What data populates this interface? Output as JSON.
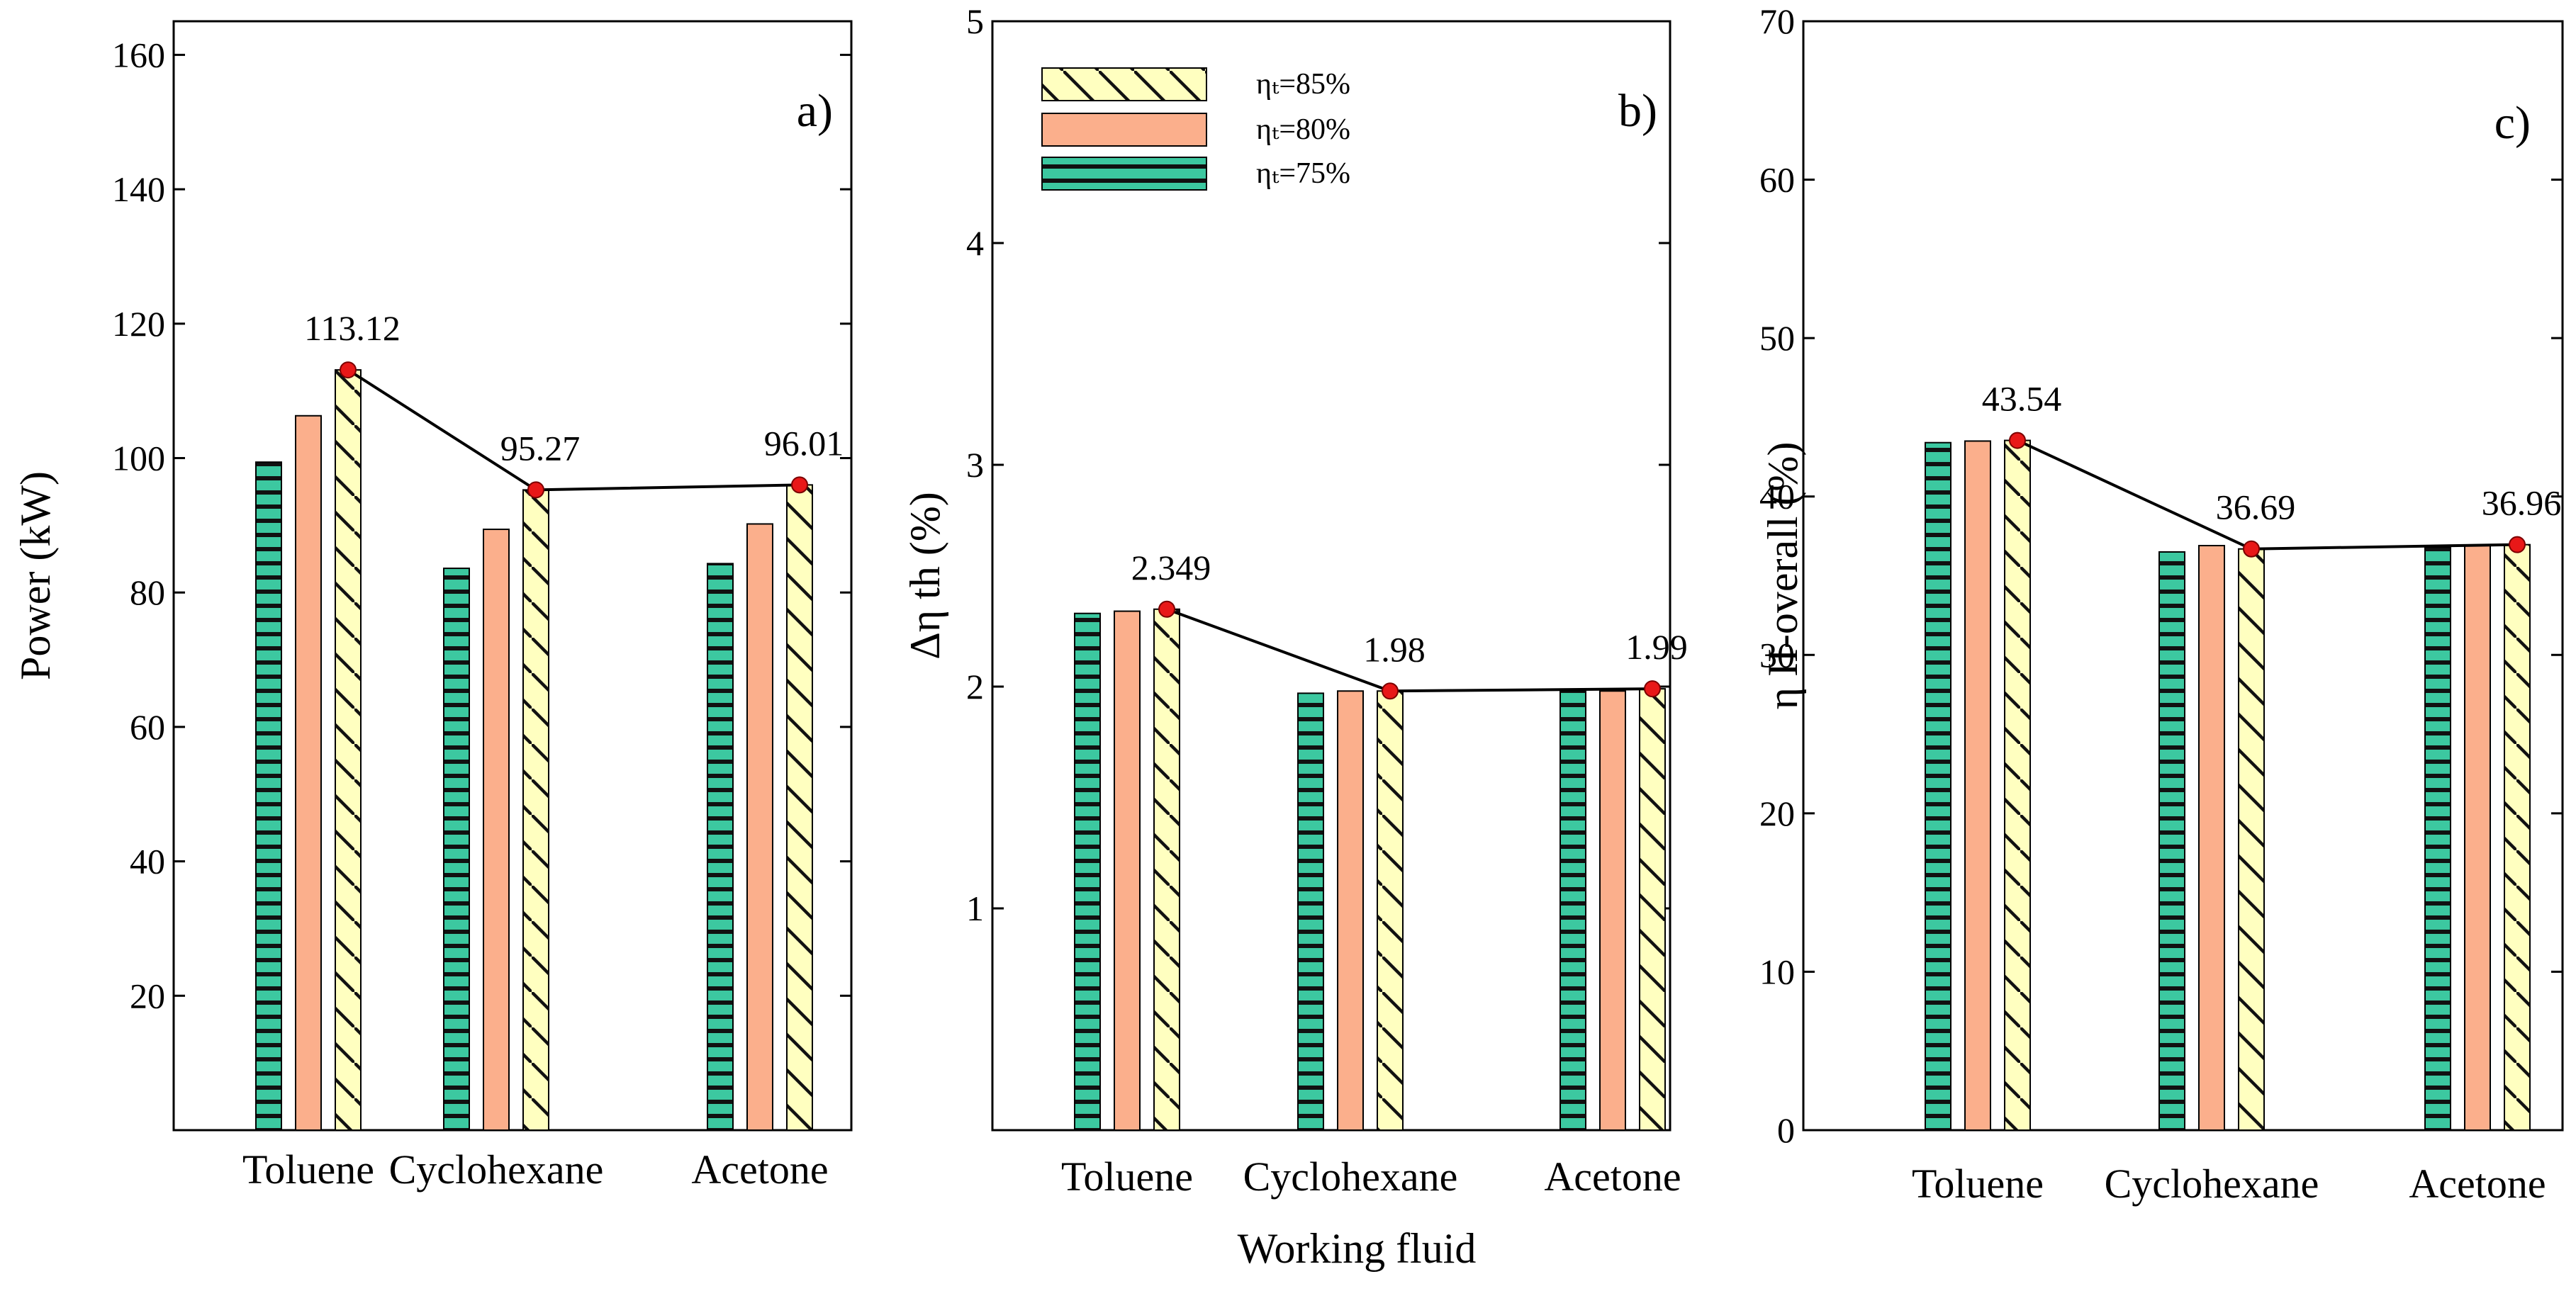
{
  "chart_data": {
    "type": "bar",
    "shared_xlabel": "Working fluid",
    "categories": [
      "Toluene",
      "Cyclohexane",
      "Acetone"
    ],
    "legend": [
      {
        "key": "s85",
        "label": "ηₜ=85%",
        "fill": "#ffffc0",
        "pattern": "diagonal-hatch"
      },
      {
        "key": "s80",
        "label": "ηₜ=80%",
        "fill": "#fbaf8c",
        "pattern": "none"
      },
      {
        "key": "s75",
        "label": "ηₜ=75%",
        "fill": "#3cc8a0",
        "pattern": "horizontal-lines"
      }
    ],
    "colors": {
      "marker": "#e81818",
      "line": "#000000"
    },
    "panels": [
      {
        "tag": "a)",
        "ylabel": "Power (kW)",
        "ylim": [
          0,
          165
        ],
        "ticks": [
          20,
          40,
          60,
          80,
          100,
          120,
          140,
          160
        ],
        "tick_labels": [
          "20",
          "40",
          "60",
          "80",
          "100",
          "120",
          "140",
          "160"
        ],
        "series": [
          {
            "name": "ηₜ=75%",
            "key": "s75",
            "values": [
              99.4,
              83.6,
              84.3
            ]
          },
          {
            "name": "ηₜ=80%",
            "key": "s80",
            "values": [
              106.3,
              89.4,
              90.2
            ]
          },
          {
            "name": "ηₜ=85%",
            "key": "s85",
            "values": [
              113.12,
              95.27,
              96.01
            ]
          }
        ],
        "annotations": [
          "113.12",
          "95.27",
          "96.01"
        ]
      },
      {
        "tag": "b)",
        "ylabel": "Δη th (%)",
        "ylim": [
          0,
          5
        ],
        "ticks": [
          1,
          2,
          3,
          4,
          5
        ],
        "tick_labels": [
          "1",
          "2",
          "3",
          "4",
          "5"
        ],
        "series": [
          {
            "name": "ηₜ=75%",
            "key": "s75",
            "values": [
              2.33,
              1.97,
              1.98
            ]
          },
          {
            "name": "ηₜ=80%",
            "key": "s80",
            "values": [
              2.34,
              1.98,
              1.98
            ]
          },
          {
            "name": "ηₜ=85%",
            "key": "s85",
            "values": [
              2.349,
              1.98,
              1.99
            ]
          }
        ],
        "annotations": [
          "2.349",
          "1.98",
          "1.99"
        ]
      },
      {
        "tag": "c)",
        "ylabel": "η II-overall (%)",
        "ylim": [
          0,
          70
        ],
        "ticks": [
          0,
          10,
          20,
          30,
          40,
          50,
          60,
          70
        ],
        "tick_labels": [
          "0",
          "10",
          "20",
          "30",
          "40",
          "50",
          "60",
          "70"
        ],
        "series": [
          {
            "name": "ηₜ=75%",
            "key": "s75",
            "values": [
              43.4,
              36.5,
              36.8
            ]
          },
          {
            "name": "ηₜ=80%",
            "key": "s80",
            "values": [
              43.5,
              36.9,
              36.9
            ]
          },
          {
            "name": "ηₜ=85%",
            "key": "s85",
            "values": [
              43.54,
              36.69,
              36.96
            ]
          }
        ],
        "annotations": [
          "43.54",
          "36.69",
          "36.96"
        ]
      }
    ]
  }
}
